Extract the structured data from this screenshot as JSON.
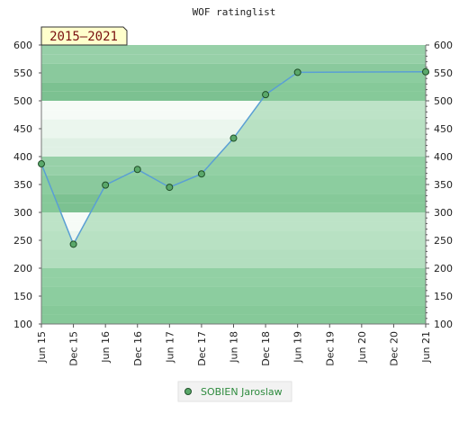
{
  "chart_data": {
    "type": "line",
    "title": "WOF ratinglist",
    "period_label": "2015–2021",
    "x_ticks": [
      "Jun 15",
      "Dec 15",
      "Jun 16",
      "Dec 16",
      "Jun 17",
      "Dec 17",
      "Jun 18",
      "Dec 18",
      "Jun 19",
      "Dec 19",
      "Jun 20",
      "Dec 20",
      "Jun 21"
    ],
    "y_ticks": [
      100,
      150,
      200,
      250,
      300,
      350,
      400,
      450,
      500,
      550,
      600
    ],
    "ylim": [
      100,
      600
    ],
    "grid": true,
    "legend_position": "bottom-center",
    "series": [
      {
        "name": "SOBIEN Jaroslaw",
        "color": "#2e8b3e",
        "line_color": "#5a9fd4",
        "fill_color": "#8ecfa1",
        "points": [
          {
            "x": "Jun 15",
            "y": 387,
            "marker": true
          },
          {
            "x": "Dec 15",
            "y": 243,
            "marker": true
          },
          {
            "x": "Jun 16",
            "y": 349,
            "marker": true
          },
          {
            "x": "Dec 16",
            "y": 377,
            "marker": true
          },
          {
            "x": "Jun 17",
            "y": 345,
            "marker": true
          },
          {
            "x": "Dec 17",
            "y": 369,
            "marker": true
          },
          {
            "x": "Jun 18",
            "y": 433,
            "marker": true
          },
          {
            "x": "Dec 18",
            "y": 511,
            "marker": true
          },
          {
            "x": "Jun 19",
            "y": 551,
            "marker": true
          },
          {
            "x": "Jun 21",
            "y": 552,
            "marker": true
          }
        ]
      }
    ]
  }
}
